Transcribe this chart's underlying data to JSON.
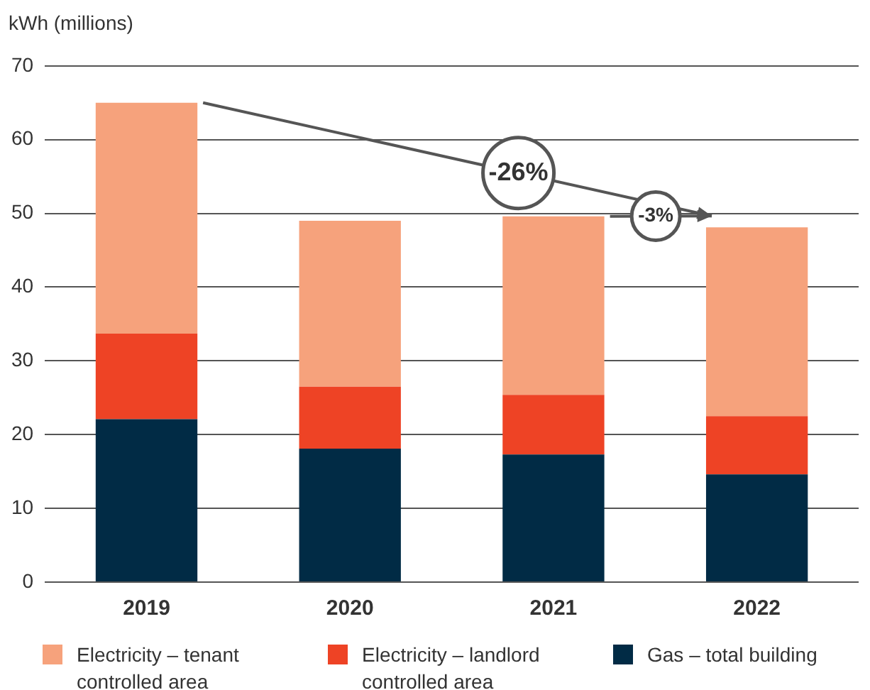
{
  "chart_data": {
    "type": "bar",
    "ylabel": "kWh (millions)",
    "categories": [
      "2019",
      "2020",
      "2021",
      "2022"
    ],
    "stacked": true,
    "ylim": [
      0,
      70
    ],
    "yticks": [
      0,
      10,
      20,
      30,
      40,
      50,
      60,
      70
    ],
    "grid": "y",
    "legend": "bottom",
    "series": [
      {
        "name": "Gas – total building",
        "color": "#012b45",
        "values": [
          22.1,
          18.1,
          17.3,
          14.6
        ]
      },
      {
        "name": "Electricity – landlord controlled area",
        "color": "#ee4325",
        "values": [
          11.6,
          8.4,
          8.1,
          7.9
        ]
      },
      {
        "name": "Electricity – tenant controlled area",
        "color": "#f6a27c",
        "values": [
          31.3,
          22.5,
          24.2,
          25.6
        ]
      }
    ],
    "annotations": [
      "-26%",
      "-3%"
    ]
  }
}
